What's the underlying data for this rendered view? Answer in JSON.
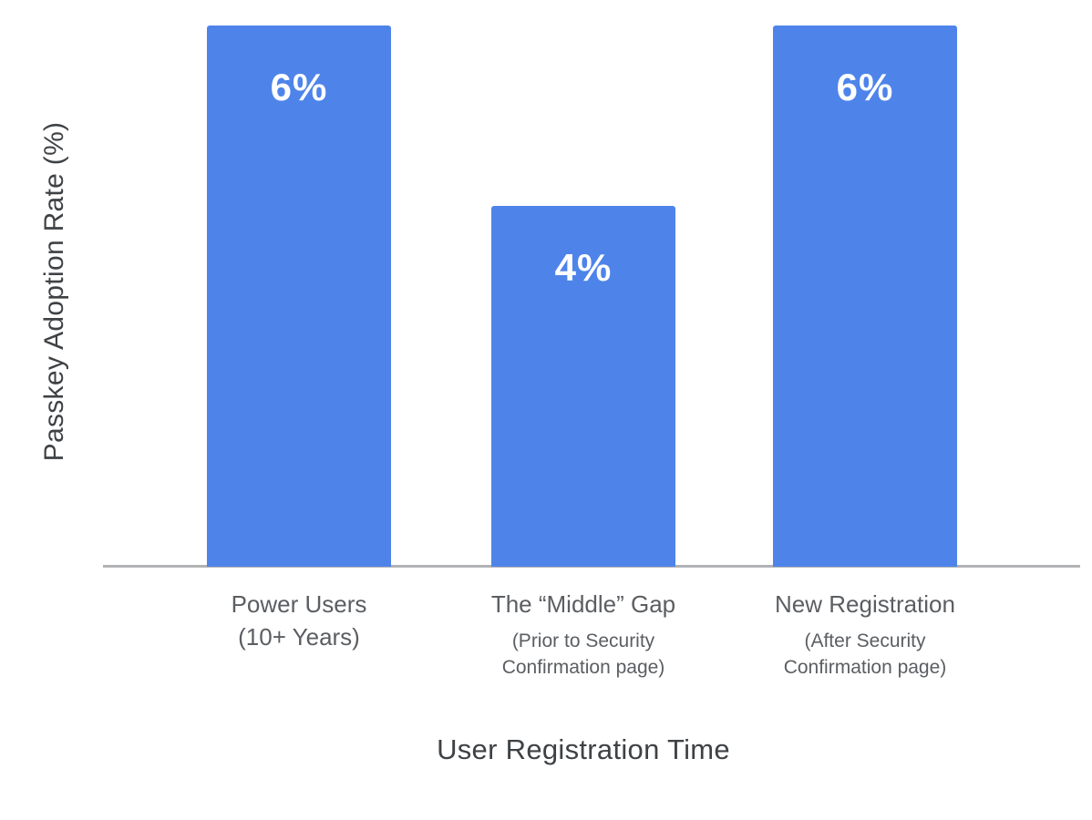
{
  "chart_data": {
    "type": "bar",
    "title": "",
    "xlabel": "User Registration Time",
    "ylabel": "Passkey Adoption Rate (%)",
    "ylim": [
      0,
      6.3
    ],
    "grid": false,
    "legend_position": "none",
    "categories": [
      "Power Users (10+ Years)",
      "The “Middle” Gap (Prior to Security Confirmation page)",
      "New Registration (After Security Confirmation page)"
    ],
    "values": [
      6,
      4,
      6
    ],
    "value_labels": [
      "6%",
      "4%",
      "6%"
    ],
    "bars": [
      {
        "label": "Power Users",
        "sublabel": "(10+ Years)",
        "value": 6,
        "value_label": "6%"
      },
      {
        "label": "The “Middle” Gap",
        "sublabel": "(Prior to Security\nConfirmation page)",
        "value": 4,
        "value_label": "4%"
      },
      {
        "label": "New Registration",
        "sublabel": "(After Security\nConfirmation page)",
        "value": 6,
        "value_label": "6%"
      }
    ]
  },
  "colors": {
    "bar_fill": "#4e84ea",
    "value_label": "#ffffff",
    "axis_line": "#b1b3b5",
    "tick_label": "#5b5e62",
    "axis_title": "#3f4245",
    "background": "#ffffff"
  }
}
